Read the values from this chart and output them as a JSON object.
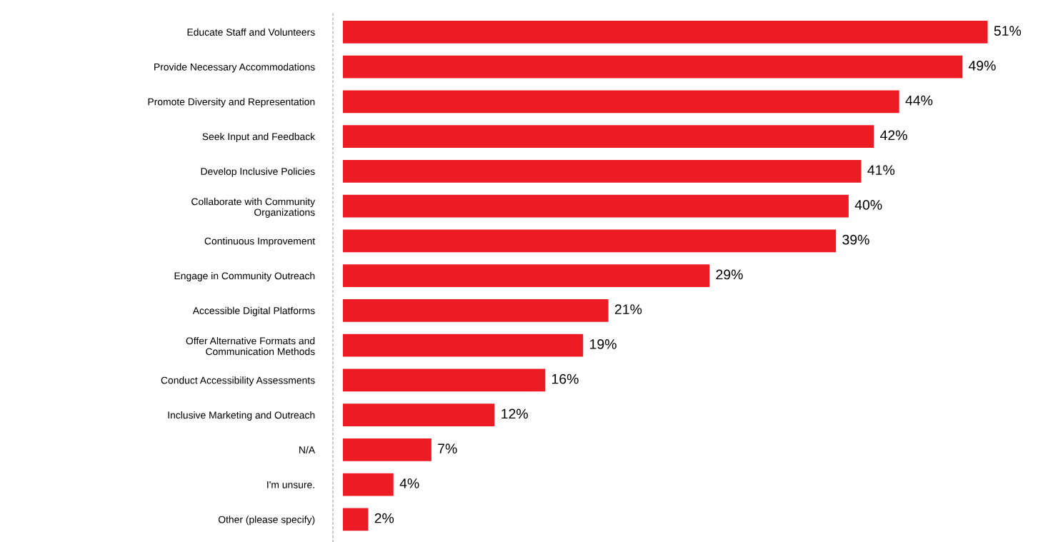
{
  "chart_data": {
    "type": "bar",
    "orientation": "horizontal",
    "categories": [
      "Educate Staff and Volunteers",
      "Provide Necessary Accommodations",
      "Promote Diversity and Representation",
      "Seek Input and Feedback",
      "Develop Inclusive Policies",
      "Collaborate with Community\nOrganizations",
      "Continuous Improvement",
      "Engage in Community Outreach",
      "Accessible Digital Platforms",
      "Offer Alternative Formats and\nCommunication Methods",
      "Conduct Accessibility Assessments",
      "Inclusive Marketing and Outreach",
      "N/A",
      "I'm unsure.",
      "Other (please specify)"
    ],
    "values": [
      51,
      49,
      44,
      42,
      41,
      40,
      39,
      29,
      21,
      19,
      16,
      12,
      7,
      4,
      2
    ],
    "value_labels": [
      "51%",
      "49%",
      "44%",
      "42%",
      "41%",
      "40%",
      "39%",
      "29%",
      "21%",
      "19%",
      "16%",
      "12%",
      "7%",
      "4%",
      "2%"
    ],
    "color": "#ed1c24",
    "grid": false,
    "legend": false
  }
}
